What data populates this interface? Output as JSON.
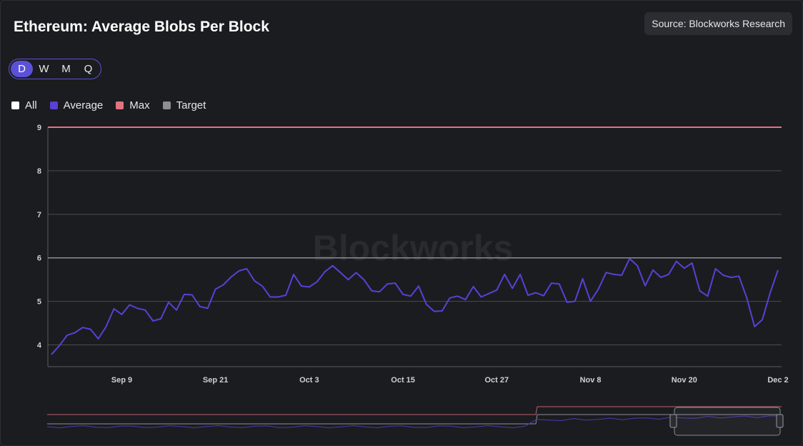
{
  "title": "Ethereum: Average Blobs Per Block",
  "source": "Source: Blockworks Research",
  "watermark": "Blockworks",
  "timeframes": [
    {
      "label": "D",
      "active": true
    },
    {
      "label": "W",
      "active": false
    },
    {
      "label": "M",
      "active": false
    },
    {
      "label": "Q",
      "active": false
    }
  ],
  "legend": [
    {
      "label": "All",
      "color": "#ffffff"
    },
    {
      "label": "Average",
      "color": "#5b3fd6"
    },
    {
      "label": "Max",
      "color": "#e5727f"
    },
    {
      "label": "Target",
      "color": "#8e8c94"
    }
  ],
  "chart_data": {
    "type": "line",
    "title": "Ethereum: Average Blobs Per Block",
    "ylim": [
      3.5,
      9
    ],
    "yticks": [
      4,
      5,
      6,
      7,
      8,
      9
    ],
    "xticks": [
      {
        "label": "Sep 9",
        "index": 9
      },
      {
        "label": "Sep 21",
        "index": 21
      },
      {
        "label": "Oct 3",
        "index": 33
      },
      {
        "label": "Oct 15",
        "index": 45
      },
      {
        "label": "Oct 27",
        "index": 57
      },
      {
        "label": "Nov 8",
        "index": 69
      },
      {
        "label": "Nov 20",
        "index": 81
      },
      {
        "label": "Dec 2",
        "index": 93
      }
    ],
    "series": [
      {
        "name": "Average",
        "color": "#5b3fd6",
        "values": [
          3.78,
          3.98,
          4.22,
          4.28,
          4.4,
          4.36,
          4.14,
          4.42,
          4.83,
          4.7,
          4.92,
          4.84,
          4.8,
          4.55,
          4.6,
          4.98,
          4.8,
          5.16,
          5.15,
          4.88,
          4.84,
          5.28,
          5.38,
          5.56,
          5.7,
          5.75,
          5.47,
          5.35,
          5.1,
          5.1,
          5.14,
          5.62,
          5.35,
          5.33,
          5.45,
          5.68,
          5.82,
          5.66,
          5.5,
          5.66,
          5.5,
          5.24,
          5.22,
          5.4,
          5.42,
          5.16,
          5.12,
          5.35,
          4.93,
          4.77,
          4.78,
          5.08,
          5.12,
          5.04,
          5.34,
          5.1,
          5.18,
          5.26,
          5.62,
          5.3,
          5.62,
          5.14,
          5.2,
          5.13,
          5.42,
          5.4,
          4.98,
          5.0,
          5.52,
          5.0,
          5.28,
          5.66,
          5.62,
          5.6,
          5.98,
          5.82,
          5.36,
          5.72,
          5.55,
          5.62,
          5.92,
          5.76,
          5.88,
          5.24,
          5.12,
          5.75,
          5.6,
          5.55,
          5.58,
          5.08,
          4.42,
          4.58,
          5.2,
          5.72
        ]
      },
      {
        "name": "Max",
        "color": "#e5727f",
        "values": [
          9
        ]
      },
      {
        "name": "Target",
        "color": "#8e8c94",
        "values": [
          6
        ]
      }
    ]
  }
}
